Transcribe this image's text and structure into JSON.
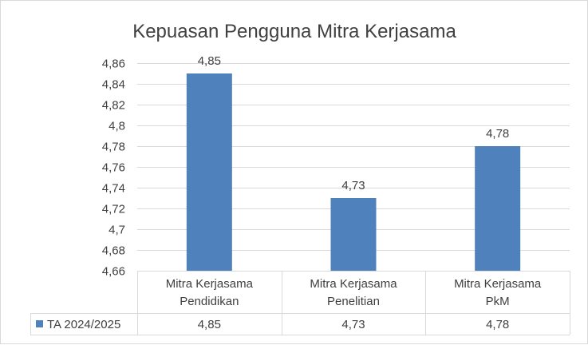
{
  "chart_data": {
    "type": "bar",
    "title": "Kepuasan Pengguna Mitra Kerjasama",
    "categories": [
      [
        "Mitra Kerjasama",
        "Pendidikan"
      ],
      [
        "Mitra Kerjasama",
        "Penelitian"
      ],
      [
        "Mitra Kerjasama",
        "PkM"
      ]
    ],
    "series": [
      {
        "name": "TA 2024/2025",
        "values": [
          4.85,
          4.73,
          4.78
        ],
        "labels": [
          "4,85",
          "4,73",
          "4,78"
        ],
        "color": "#4f81bd"
      }
    ],
    "ylim": [
      4.66,
      4.86
    ],
    "yticks": [
      4.66,
      4.68,
      4.7,
      4.72,
      4.74,
      4.76,
      4.78,
      4.8,
      4.82,
      4.84,
      4.86
    ],
    "ytick_labels": [
      "4,66",
      "4,68",
      "4,7",
      "4,72",
      "4,74",
      "4,76",
      "4,78",
      "4,8",
      "4,82",
      "4,84",
      "4,86"
    ],
    "grid": true,
    "legend": "data-table",
    "data_table": true
  }
}
